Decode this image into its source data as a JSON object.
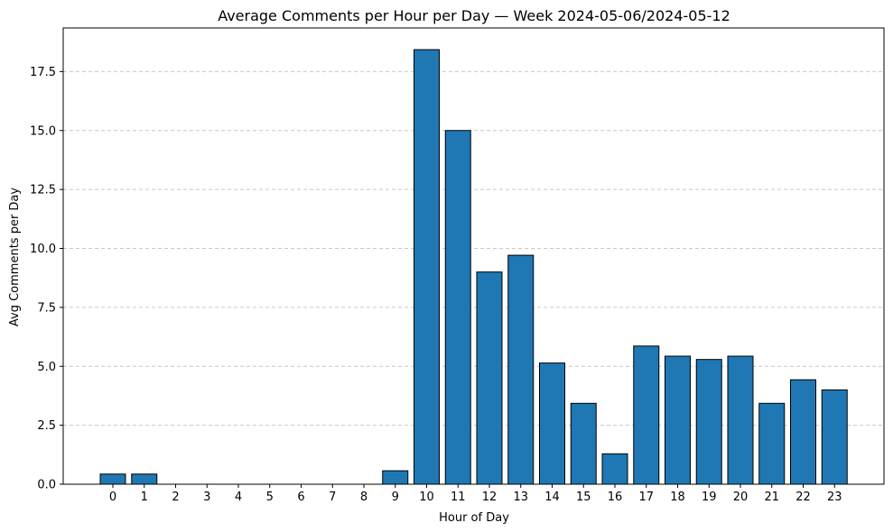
{
  "chart_data": {
    "type": "bar",
    "title": "Average Comments per Hour per Day — Week 2024-05-06/2024-05-12",
    "xlabel": "Hour of Day",
    "ylabel": "Avg Comments per Day",
    "categories": [
      "0",
      "1",
      "2",
      "3",
      "4",
      "5",
      "6",
      "7",
      "8",
      "9",
      "10",
      "11",
      "12",
      "13",
      "14",
      "15",
      "16",
      "17",
      "18",
      "19",
      "20",
      "21",
      "22",
      "23"
    ],
    "values": [
      0.43,
      0.43,
      0,
      0,
      0,
      0,
      0,
      0,
      0,
      0.57,
      18.43,
      15.0,
      9.0,
      9.71,
      5.14,
      3.43,
      1.29,
      5.86,
      5.43,
      5.29,
      5.43,
      3.43,
      4.43,
      4.0
    ],
    "ylim": [
      0,
      19.35
    ],
    "yticks": [
      0.0,
      2.5,
      5.0,
      7.5,
      10.0,
      12.5,
      15.0,
      17.5
    ],
    "ytick_labels": [
      "0.0",
      "2.5",
      "5.0",
      "7.5",
      "10.0",
      "12.5",
      "15.0",
      "17.5"
    ],
    "grid": "y-dashed",
    "colors": {
      "bar_fill": "#1f77b4",
      "bar_edge": "#000000",
      "grid": "#c7c7c7",
      "axis": "#000000"
    }
  }
}
